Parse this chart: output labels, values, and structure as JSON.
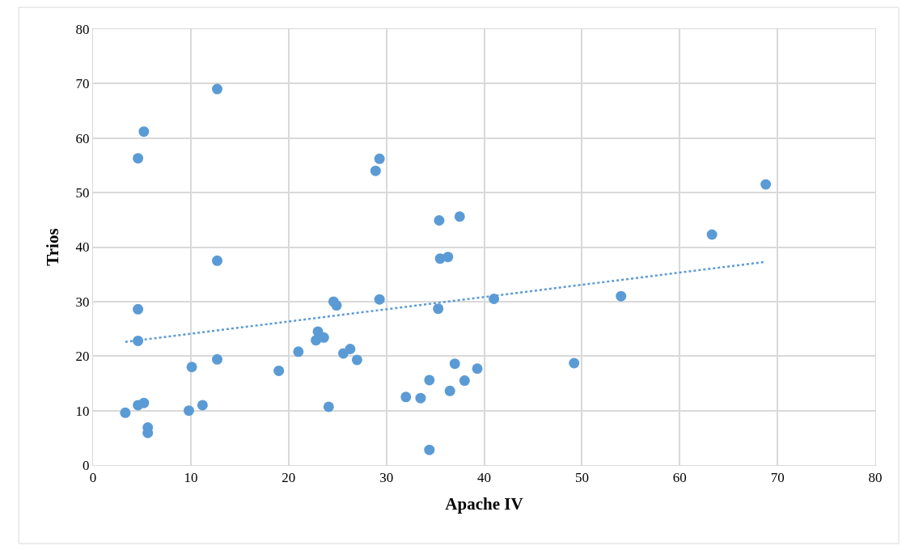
{
  "chart_data": {
    "type": "scatter",
    "xlabel": "Apache IV",
    "ylabel": "Trios",
    "xlim": [
      0,
      80
    ],
    "xticks": [
      0,
      10,
      20,
      30,
      40,
      50,
      60,
      70,
      80
    ],
    "ylim": [
      0,
      80
    ],
    "yticks": [
      0,
      10,
      20,
      30,
      40,
      50,
      60,
      70,
      80
    ],
    "grid": true,
    "series": [
      {
        "marker": "circle",
        "color": "#5b9bd5",
        "x": [
          3.3,
          4.6,
          5.2,
          5.6,
          5.6,
          4.6,
          4.6,
          4.6,
          5.2,
          9.8,
          10.1,
          11.2,
          12.7,
          12.7,
          12.7,
          19,
          21,
          22.8,
          23,
          23.6,
          24.1,
          24.6,
          24.9,
          25.6,
          26.3,
          27,
          28.9,
          29.3,
          29.3,
          32,
          33.5,
          34.4,
          34.4,
          35.3,
          35.4,
          35.5,
          36.3,
          36.5,
          37,
          37.5,
          38,
          39.3,
          41,
          49.2,
          54,
          63.3,
          68.8
        ],
        "values": [
          9.6,
          11,
          11.4,
          6.9,
          5.9,
          22.8,
          28.6,
          56.3,
          61.2,
          10,
          18,
          11,
          19.4,
          37.5,
          69,
          17.3,
          20.8,
          22.9,
          24.5,
          23.4,
          10.7,
          30,
          29.3,
          20.5,
          21.3,
          19.3,
          54,
          56.2,
          30.4,
          12.5,
          12.3,
          15.6,
          2.8,
          28.7,
          44.9,
          37.9,
          38.2,
          13.6,
          18.6,
          45.6,
          15.5,
          17.7,
          30.5,
          18.7,
          31,
          42.3,
          51.5
        ]
      },
      {
        "type": "line",
        "color": "#5b9bd5",
        "line_style": "dotted",
        "x": [
          3.3,
          68.8
        ],
        "values": [
          22.6,
          37.3
        ]
      }
    ]
  }
}
